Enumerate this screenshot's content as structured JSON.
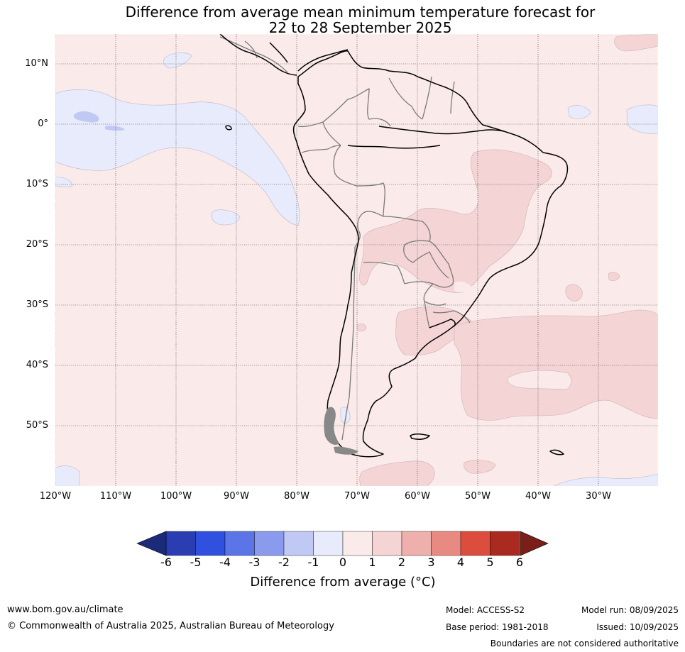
{
  "title": {
    "line1": "Difference from average mean minimum temperature forecast for",
    "line2": "22 to 28 September 2025"
  },
  "map": {
    "lat_labels": [
      "10°N",
      "0°",
      "10°S",
      "20°S",
      "30°S",
      "40°S",
      "50°S"
    ],
    "lon_labels": [
      "120°W",
      "110°W",
      "100°W",
      "90°W",
      "80°W",
      "70°W",
      "60°W",
      "50°W",
      "40°W",
      "30°W"
    ],
    "background_color": "#fbeaea"
  },
  "colorbar": {
    "tick_labels": [
      "-6",
      "-5",
      "-4",
      "-3",
      "-2",
      "-1",
      "0",
      "1",
      "2",
      "3",
      "4",
      "5",
      "6"
    ],
    "colors": [
      "#1c2a7a",
      "#2a3eb2",
      "#3050e0",
      "#5b74e6",
      "#8a9bee",
      "#c0c8f4",
      "#e8ebfb",
      "#fbeaea",
      "#f4d4d4",
      "#eeb0ac",
      "#e98a82",
      "#dd4d3e",
      "#ab2a20",
      "#7a1e19"
    ],
    "title": "Difference from average (°C)"
  },
  "footer": {
    "website": "www.bom.gov.au/climate",
    "copyright": "© Commonwealth of Australia 2025, Australian Bureau of Meteorology",
    "model": "Model: ACCESS-S2",
    "base_period": "Base period: 1981-2018",
    "model_run": "Model run: 08/09/2025",
    "issued": "Issued: 10/09/2025",
    "boundaries_note": "Boundaries are not considered authoritative"
  }
}
